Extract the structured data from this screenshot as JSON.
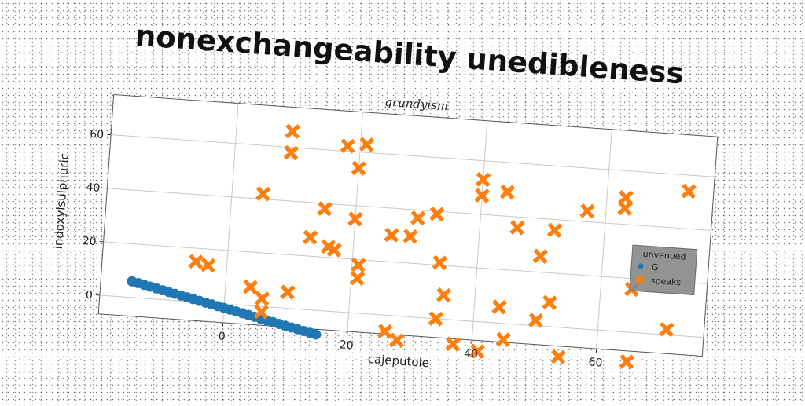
{
  "chart_data": {
    "type": "scatter",
    "title": "nonexchangeability unedibleness",
    "subtitle": "grundyism",
    "xlabel": "cajeputole",
    "ylabel": "indoxylsulphuric",
    "xlim": [
      -20,
      77
    ],
    "ylim": [
      -7,
      75
    ],
    "xticks": [
      0,
      20,
      40,
      60
    ],
    "yticks": [
      0,
      20,
      40,
      60
    ],
    "grid": true,
    "legend": {
      "title": "unvenued",
      "placement": "center-right"
    },
    "series": [
      {
        "name": "G",
        "marker": "circle",
        "color": "#1f77b4",
        "points": [
          [
            -15,
            6.0
          ],
          [
            -14,
            5.5
          ],
          [
            -13,
            5.0
          ],
          [
            -12,
            4.5
          ],
          [
            -11,
            4.0
          ],
          [
            -10,
            3.5
          ],
          [
            -9,
            3.0
          ],
          [
            -8,
            2.5
          ],
          [
            -7,
            2.0
          ],
          [
            -6,
            1.5
          ],
          [
            -5,
            1.0
          ],
          [
            -4,
            0.5
          ],
          [
            -3,
            0.0
          ],
          [
            -2,
            -0.5
          ],
          [
            -1,
            -1.0
          ],
          [
            0,
            -1.5
          ],
          [
            1,
            -2.0
          ],
          [
            2,
            -2.5
          ],
          [
            3,
            -3.0
          ],
          [
            4,
            -3.5
          ],
          [
            5,
            -4.0
          ],
          [
            6,
            -4.5
          ],
          [
            7,
            -5.0
          ],
          [
            8,
            -5.5
          ],
          [
            9,
            -6.0
          ],
          [
            10,
            -6.5
          ],
          [
            11,
            -7.0
          ],
          [
            12,
            -7.5
          ],
          [
            13,
            -8.0
          ],
          [
            14,
            -8.5
          ],
          [
            15,
            -9.0
          ]
        ]
      },
      {
        "name": "speaks",
        "marker": "x",
        "color": "#ff7f0e",
        "points": [
          [
            -5,
            15
          ],
          [
            -3,
            14
          ],
          [
            4,
            7
          ],
          [
            5,
            42
          ],
          [
            6,
            3
          ],
          [
            6,
            -2
          ],
          [
            9,
            66
          ],
          [
            9,
            58
          ],
          [
            10,
            6
          ],
          [
            13,
            27
          ],
          [
            15,
            38
          ],
          [
            16,
            24
          ],
          [
            17,
            23
          ],
          [
            18,
            62
          ],
          [
            20,
            54
          ],
          [
            20,
            35
          ],
          [
            21,
            18
          ],
          [
            21,
            13
          ],
          [
            21,
            63
          ],
          [
            26,
            30
          ],
          [
            26,
            -6
          ],
          [
            28,
            -9
          ],
          [
            29,
            30
          ],
          [
            30,
            37
          ],
          [
            33,
            39
          ],
          [
            34,
            21
          ],
          [
            34,
            0
          ],
          [
            35,
            9
          ],
          [
            37,
            -9
          ],
          [
            40,
            53
          ],
          [
            40,
            47
          ],
          [
            41,
            -11
          ],
          [
            44,
            49
          ],
          [
            44,
            6
          ],
          [
            45,
            -6
          ],
          [
            46,
            36
          ],
          [
            50,
            26
          ],
          [
            50,
            2
          ],
          [
            52,
            36
          ],
          [
            52,
            9
          ],
          [
            54,
            -11
          ],
          [
            57,
            44
          ],
          [
            63,
            50
          ],
          [
            63,
            46
          ],
          [
            65,
            -11
          ],
          [
            65,
            16
          ],
          [
            71,
            2
          ],
          [
            73,
            54
          ]
        ]
      }
    ]
  }
}
